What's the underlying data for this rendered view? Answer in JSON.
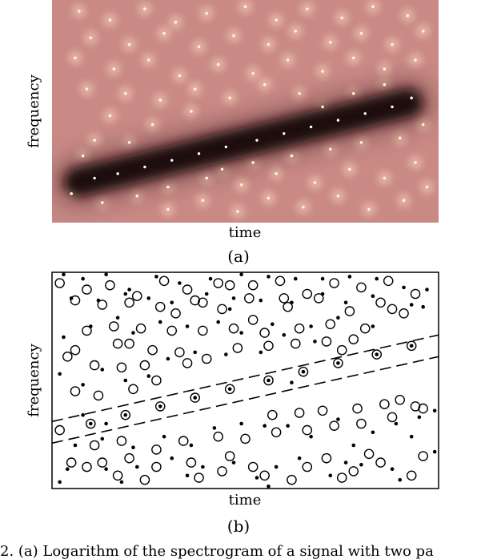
{
  "caption": "2.   (a) Logarithm of the spectrogram of a signal with two pa",
  "chart_data": [
    {
      "type": "heatmap",
      "panel_label": "(a)",
      "xlabel": "time",
      "ylabel": "frequency",
      "grid": false,
      "colors": {
        "background": "#c98a86",
        "ridge": "#1a0f10",
        "dots": "#fff3d0"
      },
      "ridge_points": [
        [
          0.11,
          0.2
        ],
        [
          0.17,
          0.22
        ],
        [
          0.24,
          0.25
        ],
        [
          0.31,
          0.28
        ],
        [
          0.38,
          0.31
        ],
        [
          0.45,
          0.34
        ],
        [
          0.53,
          0.37
        ],
        [
          0.6,
          0.4
        ],
        [
          0.67,
          0.43
        ],
        [
          0.74,
          0.46
        ],
        [
          0.81,
          0.49
        ],
        [
          0.88,
          0.52
        ]
      ],
      "zeros": [
        [
          0.07,
          0.95
        ],
        [
          0.15,
          0.91
        ],
        [
          0.24,
          0.96
        ],
        [
          0.32,
          0.9
        ],
        [
          0.4,
          0.94
        ],
        [
          0.5,
          0.97
        ],
        [
          0.58,
          0.91
        ],
        [
          0.66,
          0.96
        ],
        [
          0.75,
          0.92
        ],
        [
          0.83,
          0.97
        ],
        [
          0.92,
          0.93
        ],
        [
          0.96,
          0.86
        ],
        [
          0.1,
          0.83
        ],
        [
          0.2,
          0.8
        ],
        [
          0.29,
          0.85
        ],
        [
          0.38,
          0.79
        ],
        [
          0.47,
          0.84
        ],
        [
          0.56,
          0.8
        ],
        [
          0.63,
          0.86
        ],
        [
          0.72,
          0.81
        ],
        [
          0.8,
          0.85
        ],
        [
          0.88,
          0.8
        ],
        [
          0.94,
          0.73
        ],
        [
          0.06,
          0.74
        ],
        [
          0.16,
          0.69
        ],
        [
          0.25,
          0.73
        ],
        [
          0.33,
          0.66
        ],
        [
          0.43,
          0.71
        ],
        [
          0.52,
          0.67
        ],
        [
          0.61,
          0.73
        ],
        [
          0.7,
          0.68
        ],
        [
          0.78,
          0.74
        ],
        [
          0.86,
          0.69
        ],
        [
          0.09,
          0.6
        ],
        [
          0.19,
          0.58
        ],
        [
          0.28,
          0.55
        ],
        [
          0.37,
          0.6
        ],
        [
          0.46,
          0.56
        ],
        [
          0.55,
          0.62
        ],
        [
          0.64,
          0.58
        ],
        [
          0.15,
          0.48
        ],
        [
          0.26,
          0.44
        ],
        [
          0.36,
          0.5
        ],
        [
          0.05,
          0.13
        ],
        [
          0.13,
          0.09
        ],
        [
          0.22,
          0.12
        ],
        [
          0.3,
          0.06
        ],
        [
          0.39,
          0.1
        ],
        [
          0.48,
          0.05
        ],
        [
          0.56,
          0.11
        ],
        [
          0.65,
          0.07
        ],
        [
          0.74,
          0.12
        ],
        [
          0.82,
          0.06
        ],
        [
          0.91,
          0.1
        ],
        [
          0.97,
          0.16
        ],
        [
          0.08,
          0.3
        ],
        [
          0.3,
          0.16
        ],
        [
          0.4,
          0.2
        ],
        [
          0.49,
          0.17
        ],
        [
          0.58,
          0.22
        ],
        [
          0.68,
          0.18
        ],
        [
          0.77,
          0.24
        ],
        [
          0.86,
          0.2
        ],
        [
          0.94,
          0.27
        ],
        [
          0.52,
          0.27
        ],
        [
          0.62,
          0.3
        ],
        [
          0.72,
          0.33
        ],
        [
          0.8,
          0.36
        ],
        [
          0.9,
          0.38
        ],
        [
          0.96,
          0.44
        ],
        [
          0.44,
          0.24
        ],
        [
          0.86,
          0.62
        ],
        [
          0.93,
          0.56
        ],
        [
          0.7,
          0.52
        ],
        [
          0.78,
          0.58
        ],
        [
          0.2,
          0.36
        ],
        [
          0.11,
          0.37
        ]
      ]
    },
    {
      "type": "scatter",
      "panel_label": "(b)",
      "xlabel": "time",
      "ylabel": "frequency",
      "grid": false,
      "band_lines": [
        {
          "x": [
            0,
            1
          ],
          "y": [
            0.31,
            0.71
          ]
        },
        {
          "x": [
            0,
            1
          ],
          "y": [
            0.21,
            0.61
          ]
        }
      ],
      "series": [
        {
          "marker": "open-circle",
          "points": [
            [
              0.02,
              0.95
            ],
            [
              0.09,
              0.92
            ],
            [
              0.15,
              0.94
            ],
            [
              0.22,
              0.89
            ],
            [
              0.29,
              0.96
            ],
            [
              0.35,
              0.92
            ],
            [
              0.43,
              0.95
            ],
            [
              0.52,
              0.94
            ],
            [
              0.59,
              0.96
            ],
            [
              0.66,
              0.9
            ],
            [
              0.73,
              0.95
            ],
            [
              0.8,
              0.93
            ],
            [
              0.87,
              0.96
            ],
            [
              0.94,
              0.9
            ],
            [
              0.06,
              0.87
            ],
            [
              0.13,
              0.85
            ],
            [
              0.2,
              0.86
            ],
            [
              0.28,
              0.84
            ],
            [
              0.37,
              0.87
            ],
            [
              0.44,
              0.83
            ],
            [
              0.51,
              0.88
            ],
            [
              0.61,
              0.84
            ],
            [
              0.69,
              0.88
            ],
            [
              0.77,
              0.82
            ],
            [
              0.85,
              0.86
            ],
            [
              0.91,
              0.81
            ],
            [
              0.09,
              0.73
            ],
            [
              0.16,
              0.75
            ],
            [
              0.23,
              0.74
            ],
            [
              0.31,
              0.73
            ],
            [
              0.39,
              0.73
            ],
            [
              0.47,
              0.74
            ],
            [
              0.55,
              0.72
            ],
            [
              0.64,
              0.74
            ],
            [
              0.72,
              0.76
            ],
            [
              0.81,
              0.74
            ],
            [
              0.04,
              0.61
            ],
            [
              0.11,
              0.57
            ],
            [
              0.18,
              0.56
            ],
            [
              0.24,
              0.57
            ],
            [
              0.33,
              0.63
            ],
            [
              0.4,
              0.6
            ],
            [
              0.48,
              0.65
            ],
            [
              0.56,
              0.66
            ],
            [
              0.63,
              0.67
            ],
            [
              0.71,
              0.68
            ],
            [
              0.78,
              0.69
            ],
            [
              0.06,
              0.45
            ],
            [
              0.12,
              0.43
            ],
            [
              0.21,
              0.46
            ],
            [
              0.27,
              0.5
            ],
            [
              0.35,
              0.58
            ],
            [
              0.02,
              0.27
            ],
            [
              0.11,
              0.2
            ],
            [
              0.18,
              0.22
            ],
            [
              0.27,
              0.18
            ],
            [
              0.34,
              0.22
            ],
            [
              0.43,
              0.24
            ],
            [
              0.5,
              0.23
            ],
            [
              0.58,
              0.26
            ],
            [
              0.66,
              0.27
            ],
            [
              0.73,
              0.29
            ],
            [
              0.8,
              0.3
            ],
            [
              0.88,
              0.33
            ],
            [
              0.94,
              0.38
            ],
            [
              0.57,
              0.34
            ],
            [
              0.64,
              0.35
            ],
            [
              0.7,
              0.36
            ],
            [
              0.79,
              0.37
            ],
            [
              0.86,
              0.39
            ],
            [
              0.9,
              0.41
            ],
            [
              0.96,
              0.37
            ],
            [
              0.09,
              0.1
            ],
            [
              0.13,
              0.12
            ],
            [
              0.2,
              0.14
            ],
            [
              0.27,
              0.1
            ],
            [
              0.36,
              0.12
            ],
            [
              0.44,
              0.08
            ],
            [
              0.55,
              0.06
            ],
            [
              0.62,
              0.04
            ],
            [
              0.71,
              0.14
            ],
            [
              0.78,
              0.08
            ],
            [
              0.85,
              0.12
            ],
            [
              0.93,
              0.06
            ],
            [
              0.05,
              0.12
            ],
            [
              0.17,
              0.06
            ],
            [
              0.24,
              0.04
            ],
            [
              0.38,
              0.05
            ],
            [
              0.46,
              0.15
            ],
            [
              0.52,
              0.1
            ],
            [
              0.66,
              0.1
            ],
            [
              0.75,
              0.05
            ],
            [
              0.82,
              0.16
            ],
            [
              0.96,
              0.15
            ],
            [
              0.6,
              0.88
            ],
            [
              0.46,
              0.94
            ],
            [
              0.32,
              0.81
            ],
            [
              0.26,
              0.64
            ],
            [
              0.2,
              0.67
            ],
            [
              0.52,
              0.78
            ],
            [
              0.17,
              0.67
            ],
            [
              0.06,
              0.64
            ],
            [
              0.39,
              0.86
            ],
            [
              0.75,
              0.64
            ],
            [
              0.88,
              0.83
            ]
          ]
        },
        {
          "marker": "dot",
          "points": [
            [
              0.03,
              0.99
            ],
            [
              0.08,
              0.97
            ],
            [
              0.14,
              0.99
            ],
            [
              0.2,
              0.92
            ],
            [
              0.27,
              0.98
            ],
            [
              0.33,
              0.95
            ],
            [
              0.41,
              0.97
            ],
            [
              0.49,
              0.99
            ],
            [
              0.56,
              0.98
            ],
            [
              0.63,
              0.97
            ],
            [
              0.7,
              0.97
            ],
            [
              0.77,
              0.98
            ],
            [
              0.84,
              0.97
            ],
            [
              0.91,
              0.93
            ],
            [
              0.97,
              0.92
            ],
            [
              0.05,
              0.88
            ],
            [
              0.12,
              0.87
            ],
            [
              0.19,
              0.9
            ],
            [
              0.25,
              0.88
            ],
            [
              0.31,
              0.86
            ],
            [
              0.4,
              0.9
            ],
            [
              0.47,
              0.88
            ],
            [
              0.54,
              0.87
            ],
            [
              0.62,
              0.86
            ],
            [
              0.7,
              0.9
            ],
            [
              0.76,
              0.86
            ],
            [
              0.83,
              0.89
            ],
            [
              0.96,
              0.84
            ],
            [
              0.03,
              0.7
            ],
            [
              0.1,
              0.75
            ],
            [
              0.17,
              0.79
            ],
            [
              0.21,
              0.72
            ],
            [
              0.28,
              0.77
            ],
            [
              0.35,
              0.75
            ],
            [
              0.43,
              0.77
            ],
            [
              0.49,
              0.72
            ],
            [
              0.57,
              0.76
            ],
            [
              0.67,
              0.75
            ],
            [
              0.74,
              0.79
            ],
            [
              0.83,
              0.75
            ],
            [
              0.02,
              0.53
            ],
            [
              0.08,
              0.48
            ],
            [
              0.13,
              0.55
            ],
            [
              0.19,
              0.5
            ],
            [
              0.25,
              0.52
            ],
            [
              0.3,
              0.6
            ],
            [
              0.37,
              0.63
            ],
            [
              0.45,
              0.62
            ],
            [
              0.54,
              0.63
            ],
            [
              0.6,
              0.71
            ],
            [
              0.68,
              0.68
            ],
            [
              0.08,
              0.34
            ],
            [
              0.14,
              0.3
            ],
            [
              0.06,
              0.2
            ],
            [
              0.13,
              0.23
            ],
            [
              0.21,
              0.19
            ],
            [
              0.29,
              0.24
            ],
            [
              0.36,
              0.2
            ],
            [
              0.42,
              0.28
            ],
            [
              0.49,
              0.3
            ],
            [
              0.55,
              0.29
            ],
            [
              0.61,
              0.29
            ],
            [
              0.67,
              0.24
            ],
            [
              0.74,
              0.32
            ],
            [
              0.83,
              0.26
            ],
            [
              0.89,
              0.3
            ],
            [
              0.95,
              0.33
            ],
            [
              0.04,
              0.09
            ],
            [
              0.14,
              0.09
            ],
            [
              0.22,
              0.1
            ],
            [
              0.31,
              0.14
            ],
            [
              0.39,
              0.1
            ],
            [
              0.47,
              0.12
            ],
            [
              0.53,
              0.05
            ],
            [
              0.58,
              0.1
            ],
            [
              0.64,
              0.14
            ],
            [
              0.72,
              0.06
            ],
            [
              0.8,
              0.11
            ],
            [
              0.88,
              0.09
            ],
            [
              0.99,
              0.17
            ],
            [
              0.02,
              0.03
            ],
            [
              0.18,
              0.03
            ],
            [
              0.35,
              0.06
            ],
            [
              0.56,
              0.01
            ],
            [
              0.76,
              0.12
            ],
            [
              0.9,
              0.04
            ],
            [
              0.99,
              0.36
            ],
            [
              0.93,
              0.24
            ],
            [
              0.62,
              0.49
            ],
            [
              0.93,
              0.85
            ],
            [
              0.78,
              0.2
            ],
            [
              0.46,
              0.83
            ]
          ]
        },
        {
          "marker": "circled-dot",
          "points": [
            [
              0.1,
              0.3
            ],
            [
              0.19,
              0.34
            ],
            [
              0.28,
              0.38
            ],
            [
              0.37,
              0.42
            ],
            [
              0.46,
              0.46
            ],
            [
              0.56,
              0.5
            ],
            [
              0.65,
              0.54
            ],
            [
              0.74,
              0.58
            ],
            [
              0.84,
              0.62
            ],
            [
              0.93,
              0.66
            ]
          ]
        }
      ]
    }
  ]
}
